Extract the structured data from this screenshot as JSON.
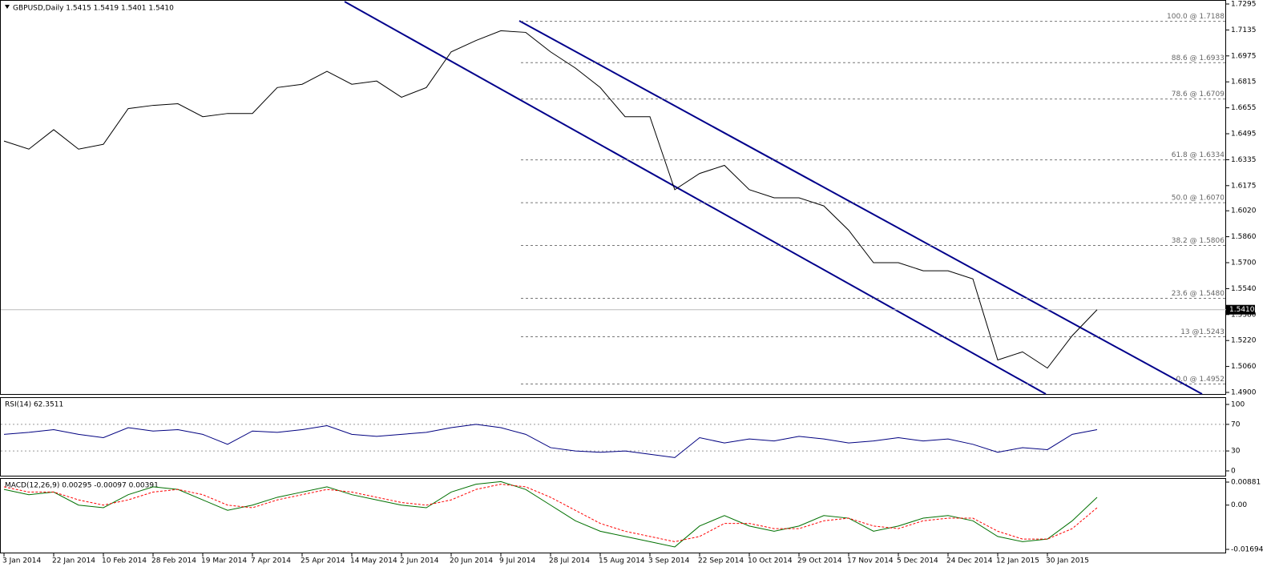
{
  "chart_data": [
    {
      "type": "line",
      "title": "GBPUSD,Daily  1.5415 1.5419 1.5401 1.5410",
      "color": "#000000",
      "categories": [
        "3 Jan 2014",
        null,
        "22 Jan 2014",
        null,
        "10 Feb 2014",
        null,
        "28 Feb 2014",
        null,
        "19 Mar 2014",
        null,
        "7 Apr 2014",
        null,
        "25 Apr 2014",
        null,
        "14 May 2014",
        null,
        "2 Jun 2014",
        null,
        "20 Jun 2014",
        null,
        "9 Jul 2014",
        null,
        "28 Jul 2014",
        null,
        "15 Aug 2014",
        null,
        "3 Sep 2014",
        null,
        "22 Sep 2014",
        null,
        "10 Oct 2014",
        null,
        "29 Oct 2014",
        null,
        "17 Nov 2014",
        null,
        "5 Dec 2014",
        null,
        "24 Dec 2014",
        null,
        "12 Jan 2015",
        null,
        "30 Jan 2015",
        null,
        null
      ],
      "values": [
        1.645,
        1.64,
        1.652,
        1.64,
        1.643,
        1.665,
        1.667,
        1.668,
        1.66,
        1.662,
        1.662,
        1.678,
        1.68,
        1.688,
        1.68,
        1.682,
        1.672,
        1.678,
        1.7,
        1.707,
        1.713,
        1.712,
        1.7,
        1.69,
        1.678,
        1.66,
        1.66,
        1.615,
        1.625,
        1.63,
        1.615,
        1.61,
        1.61,
        1.605,
        1.59,
        1.57,
        1.57,
        1.565,
        1.565,
        1.56,
        1.51,
        1.515,
        1.505,
        1.525,
        1.541
      ],
      "ylim": [
        1.49,
        1.7295
      ],
      "yticks": [
        {
          "value": 1.7295,
          "label": "1.7295"
        },
        {
          "value": 1.7135,
          "label": "1.7135"
        },
        {
          "value": 1.6975,
          "label": "1.6975"
        },
        {
          "value": 1.6815,
          "label": "1.6815"
        },
        {
          "value": 1.6655,
          "label": "1.6655"
        },
        {
          "value": 1.6495,
          "label": "1.6495"
        },
        {
          "value": 1.6335,
          "label": "1.6335"
        },
        {
          "value": 1.6175,
          "label": "1.6175"
        },
        {
          "value": 1.602,
          "label": "1.6020"
        },
        {
          "value": 1.586,
          "label": "1.5860"
        },
        {
          "value": 1.57,
          "label": "1.5700"
        },
        {
          "value": 1.554,
          "label": "1.5540"
        },
        {
          "value": 1.538,
          "label": "1.5380"
        },
        {
          "value": 1.522,
          "label": "1.5220"
        },
        {
          "value": 1.506,
          "label": "1.5060"
        },
        {
          "value": 1.49,
          "label": "1.4900"
        }
      ],
      "last_price": {
        "value": 1.541,
        "label": "1.5410"
      },
      "fib_levels": [
        {
          "value": 1.7188,
          "label": "100.0 @ 1.7188"
        },
        {
          "value": 1.6933,
          "label": "88.6 @ 1.6933"
        },
        {
          "value": 1.6709,
          "label": "78.6 @ 1.6709"
        },
        {
          "value": 1.6334,
          "label": "61.8 @ 1.6334"
        },
        {
          "value": 1.607,
          "label": "50.0 @ 1.6070"
        },
        {
          "value": 1.5806,
          "label": "38.2 @ 1.5806"
        },
        {
          "value": 1.548,
          "label": "23.6 @ 1.5480"
        },
        {
          "value": 1.5243,
          "label": "13 @1.5243"
        },
        {
          "value": 1.4952,
          "label": "0.0 @ 1.4952"
        }
      ]
    },
    {
      "type": "line",
      "title": "RSI(14) 62.3511",
      "color": "#000080",
      "values": [
        55,
        58,
        62,
        55,
        50,
        65,
        60,
        62,
        55,
        40,
        60,
        58,
        62,
        68,
        55,
        52,
        55,
        58,
        65,
        70,
        65,
        55,
        35,
        30,
        28,
        30,
        25,
        20,
        50,
        42,
        48,
        45,
        52,
        48,
        42,
        45,
        50,
        45,
        48,
        40,
        28,
        35,
        32,
        55,
        62
      ],
      "ylim": [
        0,
        100
      ],
      "yticks": [
        100,
        70,
        30,
        0
      ],
      "levels": [
        70,
        30
      ]
    },
    {
      "type": "line",
      "title": "MACD(12,26,9) 0.00295 -0.00097 0.00391",
      "series": [
        {
          "color": "#007000",
          "values": [
            0.006,
            0.004,
            0.005,
            0.0,
            -0.001,
            0.004,
            0.007,
            0.006,
            0.002,
            -0.002,
            0.0,
            0.003,
            0.005,
            0.007,
            0.004,
            0.002,
            0.0,
            -0.001,
            0.005,
            0.008,
            0.009,
            0.006,
            0.0,
            -0.006,
            -0.01,
            -0.012,
            -0.014,
            -0.016,
            -0.008,
            -0.004,
            -0.008,
            -0.01,
            -0.008,
            -0.004,
            -0.005,
            -0.01,
            -0.008,
            -0.005,
            -0.004,
            -0.006,
            -0.012,
            -0.014,
            -0.013,
            -0.006,
            0.003
          ]
        },
        {
          "color": "#ff0000",
          "dashed": true,
          "values": [
            0.007,
            0.005,
            0.005,
            0.002,
            0.0,
            0.002,
            0.005,
            0.006,
            0.004,
            0.0,
            -0.001,
            0.002,
            0.004,
            0.006,
            0.005,
            0.003,
            0.001,
            0.0,
            0.002,
            0.006,
            0.008,
            0.007,
            0.003,
            -0.002,
            -0.007,
            -0.01,
            -0.012,
            -0.014,
            -0.012,
            -0.007,
            -0.007,
            -0.009,
            -0.009,
            -0.006,
            -0.005,
            -0.008,
            -0.009,
            -0.006,
            -0.005,
            -0.005,
            -0.01,
            -0.013,
            -0.013,
            -0.009,
            -0.001
          ]
        }
      ],
      "ylim": [
        -0.01694,
        0.00881
      ],
      "yticks": [
        0.00881,
        {
          "value": 0,
          "label": "0.00"
        },
        -0.01694
      ]
    }
  ]
}
